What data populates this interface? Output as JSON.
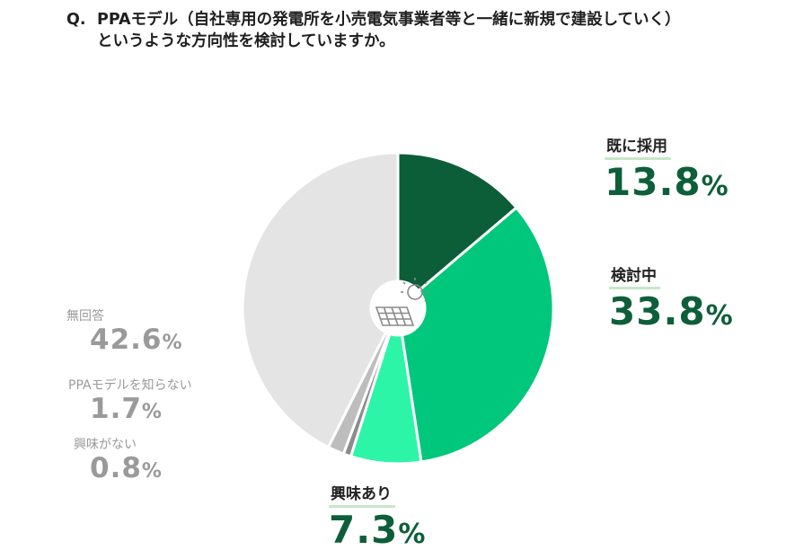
{
  "question": {
    "prefix": "Q.",
    "line1": "PPAモデル（自社専用の発電所を小売電気事業者等と一緒に新規で建設していく）",
    "line2": "というような方向性を検討していますか。"
  },
  "chart_data": {
    "type": "pie",
    "title": "PPAモデル（自社専用の発電所を小売電気事業者等と一緒に新規で建設していく）というような方向性を検討していますか。",
    "unit": "%",
    "start": "top",
    "direction": "clockwise",
    "slices": [
      {
        "label": "既に採用",
        "value": 13.8,
        "value_text": "13.8",
        "color": "#0b5e38"
      },
      {
        "label": "検討中",
        "value": 33.8,
        "value_text": "33.8",
        "color": "#00c77c"
      },
      {
        "label": "興味あり",
        "value": 7.3,
        "value_text": "7.3",
        "color": "#2df5a8"
      },
      {
        "label": "興味がない",
        "value": 0.8,
        "value_text": "0.8",
        "color": "#8c8c8c"
      },
      {
        "label": "PPAモデルを知らない",
        "value": 1.7,
        "value_text": "1.7",
        "color": "#bdbdbd"
      },
      {
        "label": "無回答",
        "value": 42.6,
        "value_text": "42.6",
        "color": "#e4e4e4"
      }
    ]
  },
  "center_icon": "solar-panel-sun-icon"
}
